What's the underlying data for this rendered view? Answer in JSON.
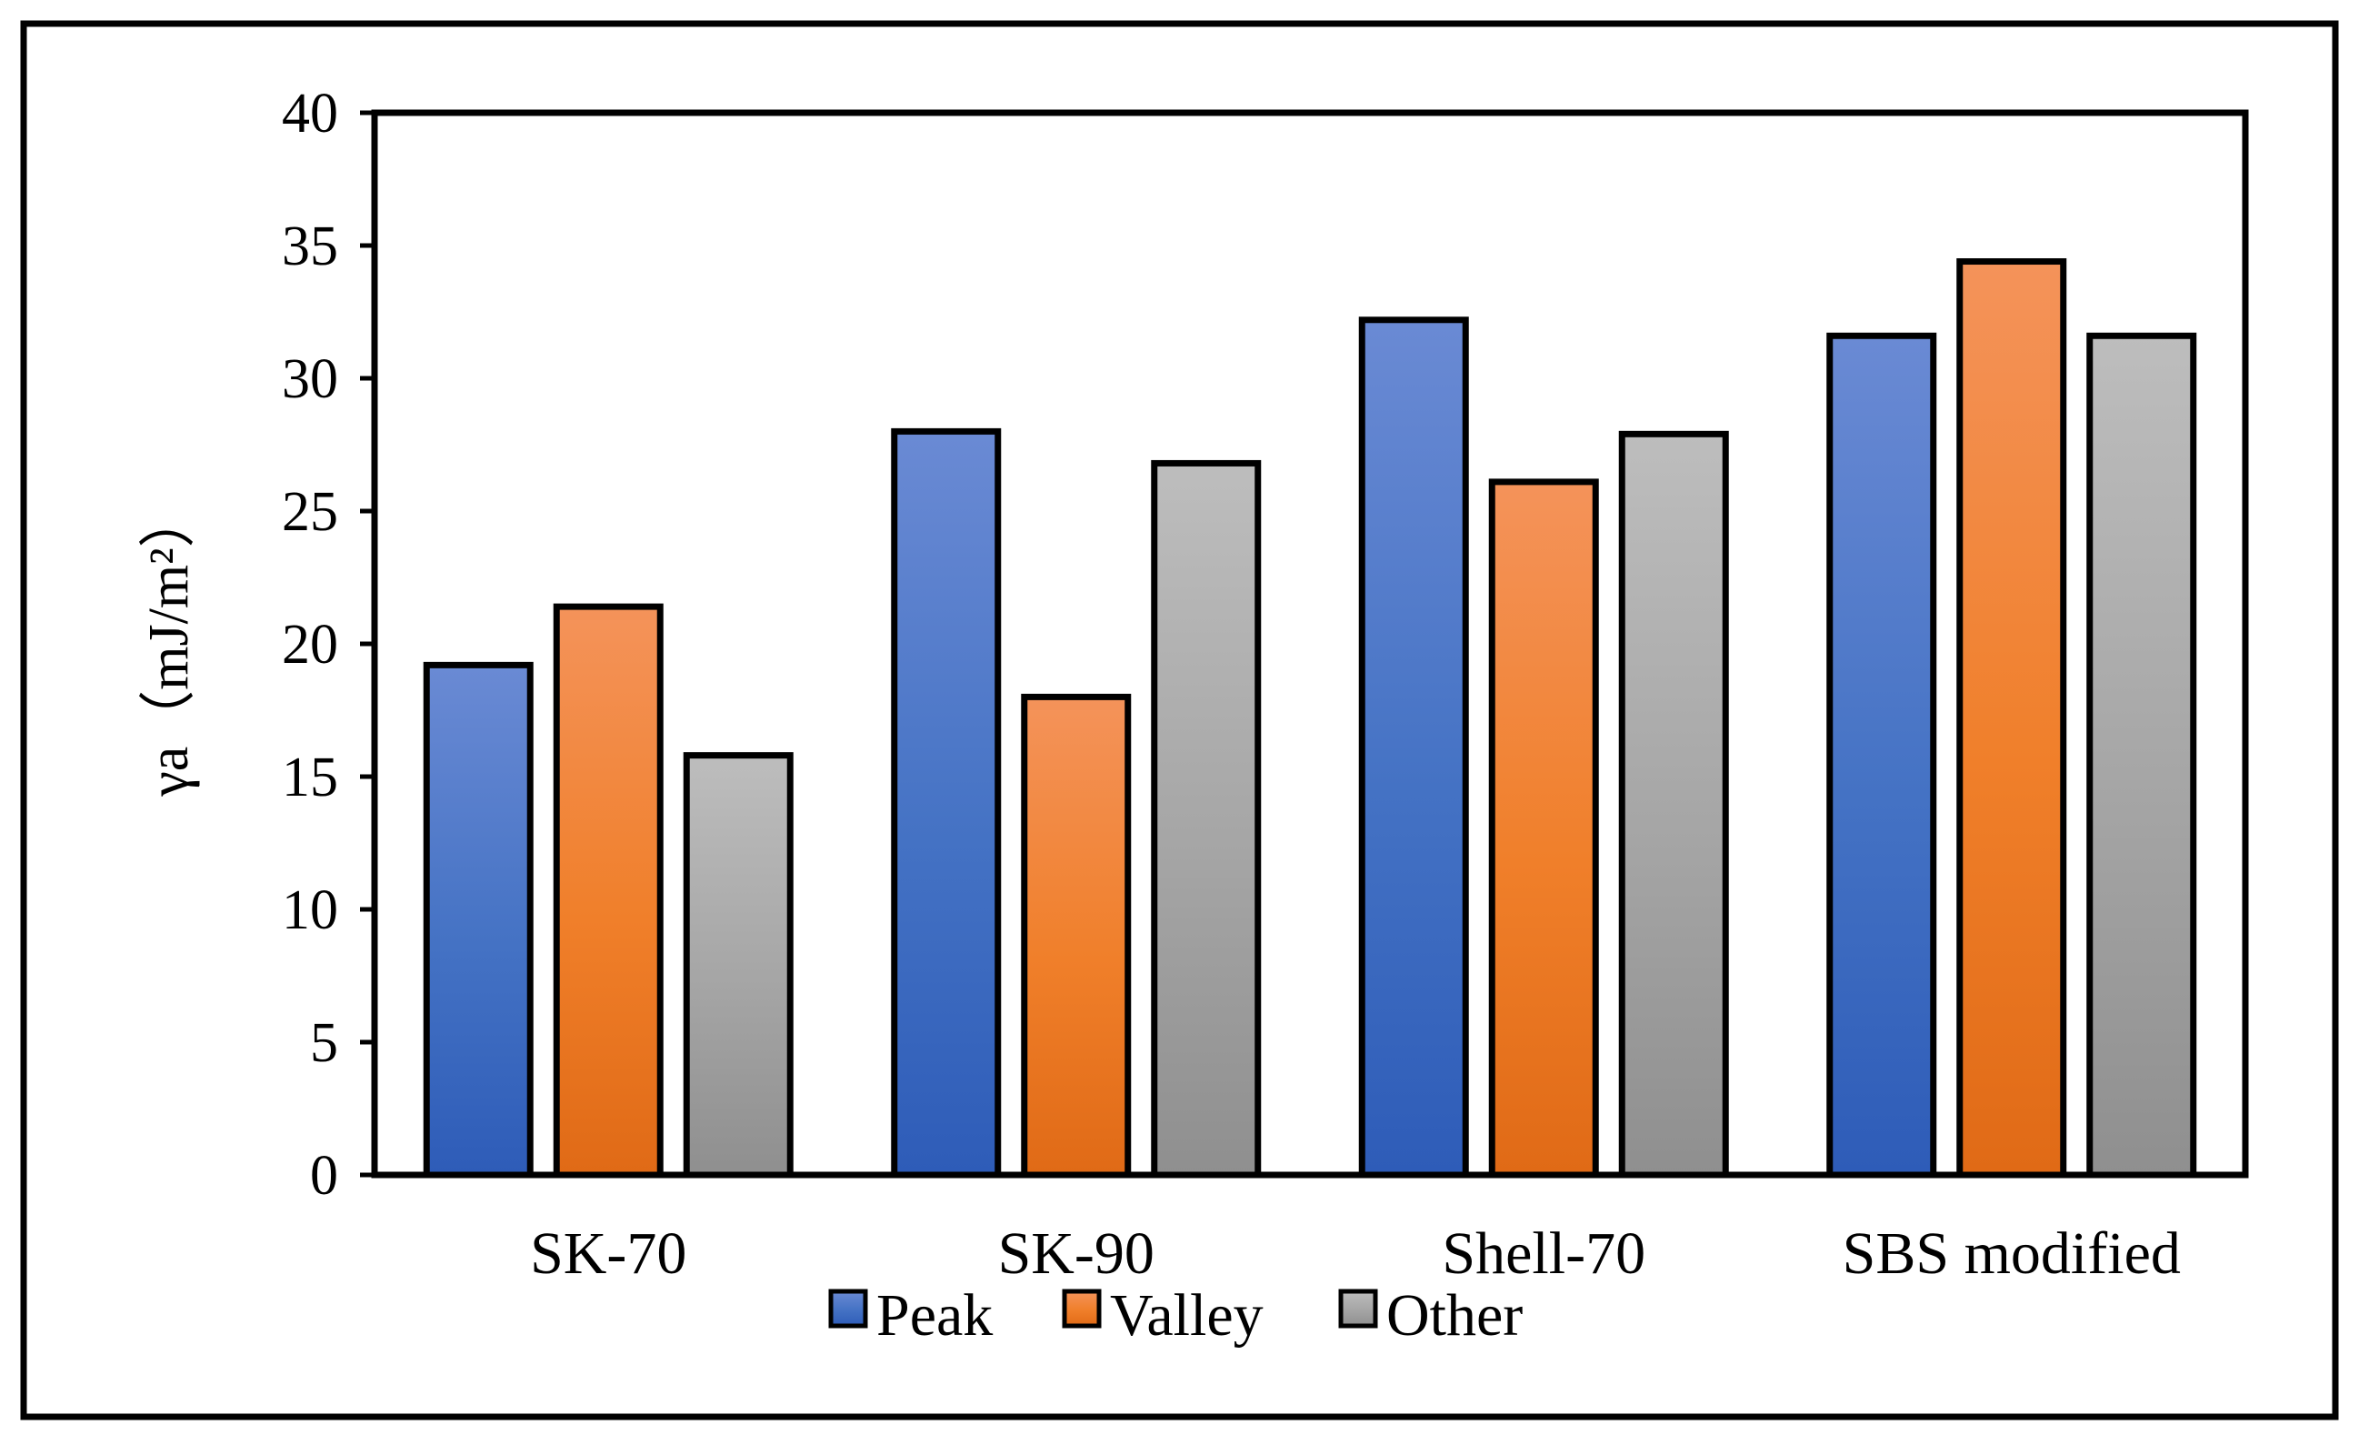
{
  "chart_data": {
    "type": "bar",
    "title": "",
    "xlabel": "",
    "ylabel": "γa（mJ/m²）",
    "ylim": [
      0,
      40
    ],
    "yticks": [
      0,
      5,
      10,
      15,
      20,
      25,
      30,
      35,
      40
    ],
    "categories": [
      "SK-70",
      "SK-90",
      "Shell-70",
      "SBS modified"
    ],
    "series": [
      {
        "name": "Peak",
        "values": [
          19.2,
          28.0,
          32.2,
          31.6
        ]
      },
      {
        "name": "Valley",
        "values": [
          21.4,
          18.0,
          26.1,
          34.4
        ]
      },
      {
        "name": "Other",
        "values": [
          15.8,
          26.8,
          27.9,
          31.6
        ]
      }
    ],
    "legend_position": "bottom-center",
    "grid": false,
    "colors": {
      "Peak": {
        "top": "#6a8ad4",
        "mid": "#4472c4",
        "bottom": "#2e5cb8"
      },
      "Valley": {
        "top": "#f4935a",
        "mid": "#f07f2a",
        "bottom": "#e06a16"
      },
      "Other": {
        "top": "#bdbdbd",
        "mid": "#a5a5a5",
        "bottom": "#8f8f8f"
      },
      "outline": "#000000"
    }
  }
}
